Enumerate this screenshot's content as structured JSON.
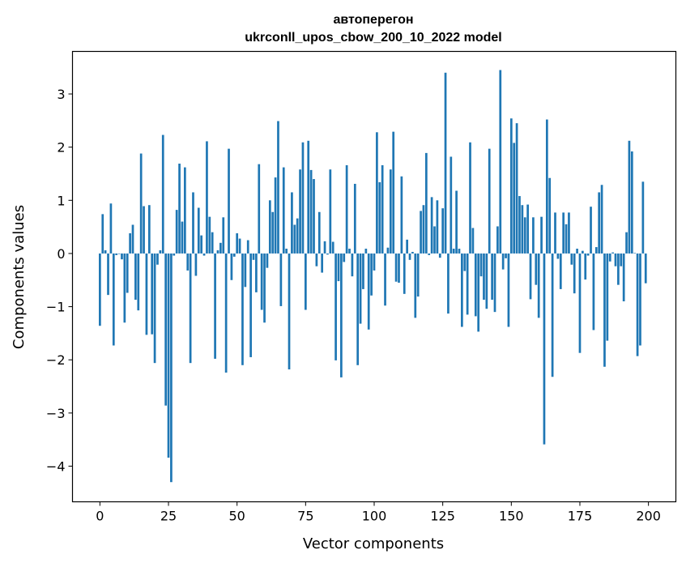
{
  "chart_data": {
    "type": "bar",
    "title_lines": [
      "автоперегон",
      "ukrconll_upos_cbow_200_10_2022 model"
    ],
    "xlabel": "Vector components",
    "ylabel": "Components values",
    "xlim": [
      -10,
      210
    ],
    "ylim": [
      -4.67,
      3.8
    ],
    "xticks": [
      0,
      25,
      50,
      75,
      100,
      125,
      150,
      175,
      200
    ],
    "yticks": [
      3,
      2,
      1,
      0,
      -1,
      -2,
      -3,
      -4
    ],
    "ytick_labels": [
      "3",
      "2",
      "1",
      "0",
      "−1",
      "−2",
      "−3",
      "−4"
    ],
    "grid": false,
    "color": "#1f77b4",
    "values": [
      -1.36,
      0.74,
      0.06,
      -0.78,
      0.94,
      -1.73,
      -0.03,
      -0.01,
      -0.11,
      -1.3,
      -0.74,
      0.38,
      0.54,
      -0.87,
      -1.07,
      1.88,
      0.89,
      -1.53,
      0.91,
      -1.52,
      -2.06,
      -0.21,
      0.06,
      2.23,
      -2.86,
      -3.84,
      -4.3,
      -0.04,
      0.82,
      1.69,
      0.6,
      1.62,
      -0.32,
      -2.06,
      1.15,
      -0.42,
      0.86,
      0.34,
      -0.04,
      2.11,
      0.69,
      0.4,
      -1.98,
      0.06,
      0.2,
      0.68,
      -2.24,
      1.97,
      -0.5,
      -0.06,
      0.38,
      0.28,
      -2.1,
      -0.63,
      0.25,
      -1.95,
      -0.12,
      -0.73,
      1.68,
      -1.06,
      -1.3,
      -0.27,
      1.0,
      0.78,
      1.43,
      2.49,
      -0.99,
      1.62,
      0.09,
      -2.18,
      1.15,
      0.54,
      0.66,
      1.58,
      2.09,
      -1.06,
      2.12,
      1.57,
      1.4,
      -0.24,
      0.78,
      -0.36,
      0.23,
      -0.02,
      1.58,
      0.22,
      -2.01,
      -0.52,
      -2.33,
      -0.16,
      1.66,
      0.09,
      -0.43,
      1.31,
      -2.1,
      -1.32,
      -0.67,
      0.09,
      -1.43,
      -0.79,
      -0.32,
      2.28,
      1.34,
      1.66,
      -0.98,
      0.11,
      1.58,
      2.29,
      -0.53,
      -0.55,
      1.45,
      -0.76,
      0.26,
      -0.12,
      0.03,
      -1.21,
      -0.81,
      0.8,
      0.91,
      1.89,
      -0.03,
      1.06,
      0.51,
      1.0,
      -0.08,
      0.85,
      3.4,
      -1.13,
      1.82,
      0.09,
      1.18,
      0.09,
      -1.38,
      -0.33,
      -1.15,
      2.09,
      0.48,
      -1.18,
      -1.47,
      -0.43,
      -0.87,
      -1.04,
      1.97,
      -0.87,
      -1.1,
      0.51,
      3.45,
      -0.3,
      -0.09,
      -1.38,
      2.54,
      2.08,
      2.45,
      1.08,
      0.91,
      0.68,
      0.92,
      -0.86,
      0.68,
      -0.59,
      -1.21,
      0.69,
      -3.59,
      2.52,
      1.42,
      -2.32,
      0.77,
      -0.1,
      -0.67,
      0.77,
      0.55,
      0.77,
      -0.21,
      -0.75,
      0.09,
      -1.87,
      0.05,
      -0.49,
      -0.04,
      0.88,
      -1.44,
      0.12,
      1.15,
      1.29,
      -2.13,
      -1.64,
      -0.15,
      0.02,
      -0.24,
      -0.59,
      -0.24,
      -0.9,
      0.4,
      2.12,
      1.92,
      0.01,
      -1.93,
      -1.73,
      1.35,
      -0.56
    ]
  }
}
